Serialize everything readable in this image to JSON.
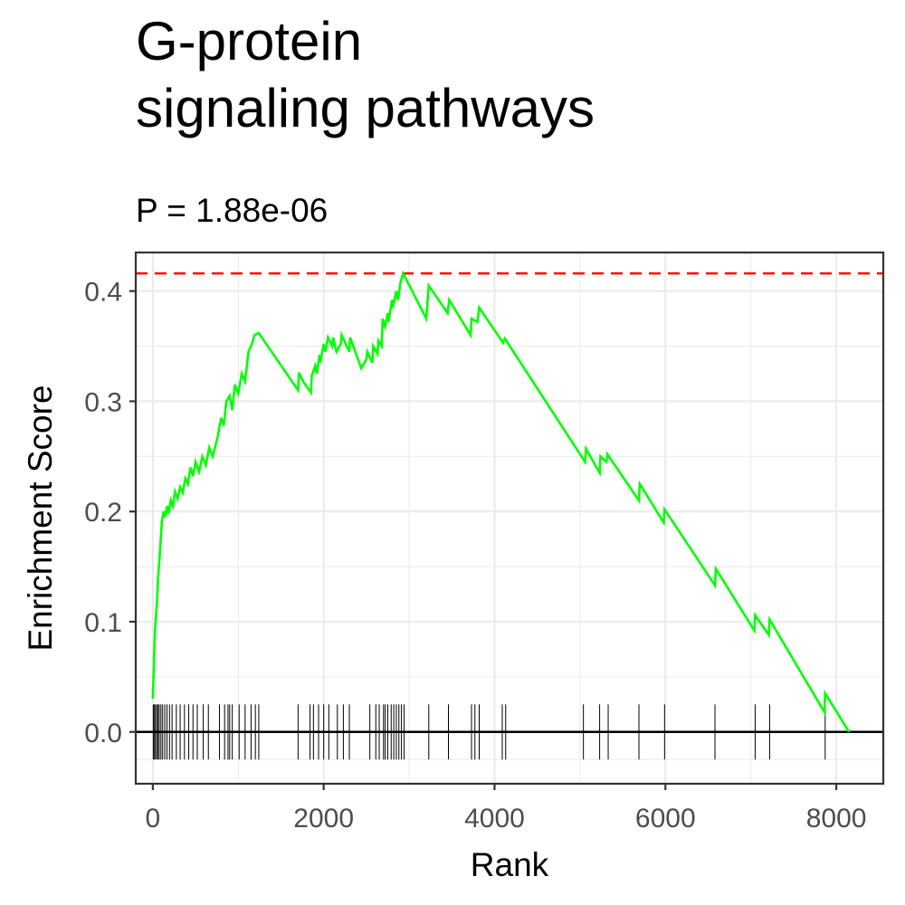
{
  "chart_data": {
    "type": "line",
    "title_line1": "G-protein",
    "title_line2": "signaling pathways",
    "subtitle": "P = 1.88e-06",
    "xlabel": "Rank",
    "ylabel": "Enrichment Score",
    "xlim": [
      -200,
      8550
    ],
    "ylim": [
      -0.047,
      0.435
    ],
    "x_ticks": [
      0,
      2000,
      4000,
      6000,
      8000
    ],
    "x_tick_labels": [
      "0",
      "2000",
      "4000",
      "6000",
      "8000"
    ],
    "y_ticks": [
      0.0,
      0.1,
      0.2,
      0.3,
      0.4
    ],
    "y_tick_labels": [
      "0.0",
      "0.1",
      "0.2",
      "0.3",
      "0.4"
    ],
    "grid": true,
    "max_es": 0.416,
    "colors": {
      "line": "#00ff00",
      "max_line": "#ff0000",
      "ticks": "#000000",
      "zero_line": "#000000",
      "grid": "#ebebeb"
    },
    "series": [
      {
        "x": [
          0,
          12,
          25,
          37,
          50,
          62,
          75,
          90,
          105,
          125,
          145,
          165,
          185,
          210,
          235,
          260,
          290,
          320,
          350,
          380,
          410,
          440,
          470,
          500,
          540,
          580,
          620,
          660,
          700,
          760,
          800,
          830,
          860,
          900,
          930,
          960,
          1000,
          1040,
          1080,
          1120,
          1160,
          1190,
          1240,
          1700,
          1710,
          1760,
          1850,
          1860,
          1900,
          1920,
          1950,
          1960,
          2000,
          2020,
          2050,
          2100,
          2110,
          2150,
          2200,
          2210,
          2300,
          2310,
          2440,
          2500,
          2510,
          2570,
          2580,
          2630,
          2640,
          2680,
          2690,
          2720,
          2750,
          2760,
          2800,
          2810,
          2850,
          2870,
          2900,
          2930,
          3200,
          3230,
          3450,
          3470,
          3720,
          3730,
          3800,
          3820,
          4100,
          4120,
          5060,
          5070,
          5230,
          5240,
          5310,
          5320,
          5690,
          5700,
          5980,
          5990,
          6580,
          6590,
          7040,
          7050,
          7210,
          7220,
          7860,
          7870,
          8150
        ],
        "y": [
          0.03,
          0.06,
          0.092,
          0.105,
          0.12,
          0.14,
          0.155,
          0.172,
          0.19,
          0.2,
          0.195,
          0.205,
          0.198,
          0.21,
          0.205,
          0.218,
          0.212,
          0.222,
          0.217,
          0.23,
          0.225,
          0.24,
          0.232,
          0.245,
          0.236,
          0.25,
          0.242,
          0.258,
          0.25,
          0.268,
          0.285,
          0.278,
          0.3,
          0.305,
          0.292,
          0.315,
          0.307,
          0.325,
          0.318,
          0.345,
          0.352,
          0.36,
          0.362,
          0.31,
          0.326,
          0.318,
          0.308,
          0.323,
          0.332,
          0.325,
          0.342,
          0.335,
          0.352,
          0.345,
          0.358,
          0.35,
          0.358,
          0.345,
          0.352,
          0.36,
          0.345,
          0.358,
          0.33,
          0.338,
          0.345,
          0.335,
          0.35,
          0.343,
          0.355,
          0.35,
          0.375,
          0.368,
          0.38,
          0.372,
          0.392,
          0.385,
          0.4,
          0.392,
          0.408,
          0.416,
          0.375,
          0.405,
          0.38,
          0.392,
          0.36,
          0.375,
          0.372,
          0.385,
          0.353,
          0.357,
          0.245,
          0.257,
          0.235,
          0.25,
          0.245,
          0.252,
          0.21,
          0.225,
          0.19,
          0.202,
          0.133,
          0.148,
          0.092,
          0.106,
          0.088,
          0.102,
          0.018,
          0.035,
          0.0
        ]
      }
    ],
    "hit_ranks": [
      5,
      15,
      30,
      45,
      60,
      75,
      95,
      115,
      140,
      165,
      195,
      225,
      275,
      320,
      370,
      420,
      470,
      520,
      590,
      650,
      780,
      840,
      880,
      900,
      930,
      1010,
      1080,
      1150,
      1200,
      1240,
      1700,
      1840,
      1880,
      1940,
      2000,
      2060,
      2160,
      2230,
      2300,
      2540,
      2610,
      2650,
      2700,
      2720,
      2750,
      2790,
      2820,
      2850,
      2880,
      2910,
      2940,
      3230,
      3460,
      3730,
      3770,
      3820,
      4090,
      4130,
      5040,
      5230,
      5330,
      5690,
      5990,
      6580,
      7050,
      7220,
      7870
    ]
  }
}
